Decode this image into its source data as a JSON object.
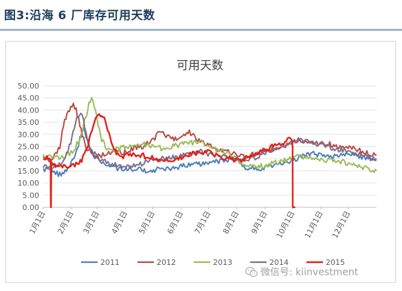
{
  "header": {
    "title": "图3:沿海 6 厂库存可用天数"
  },
  "watermark": {
    "label": "微信号: kiinvestment"
  },
  "chart_data": {
    "type": "line",
    "title": "可用天数",
    "xlabel": "",
    "ylabel": "",
    "ylim": [
      0,
      50
    ],
    "yticks": [
      "0.00",
      "5.00",
      "10.00",
      "15.00",
      "20.00",
      "25.00",
      "30.00",
      "35.00",
      "40.00",
      "45.00",
      "50.00"
    ],
    "x_ticks": [
      "1月1日",
      "2月1日",
      "3月1日",
      "4月1日",
      "5月1日",
      "6月1日",
      "7月1日",
      "8月1日",
      "9月1日",
      "10月1日",
      "11月1日",
      "12月1日"
    ],
    "x_tick_days": [
      0,
      31,
      59,
      90,
      120,
      151,
      181,
      212,
      243,
      273,
      304,
      334
    ],
    "x_domain_days": [
      0,
      365
    ],
    "grid": "horizontal",
    "legend": "bottom",
    "series": [
      {
        "name": "2011",
        "color": "#4a7ebb",
        "points": [
          [
            0,
            15
          ],
          [
            6,
            16
          ],
          [
            12,
            14.5
          ],
          [
            18,
            13.5
          ],
          [
            24,
            14.5
          ],
          [
            28,
            16
          ],
          [
            32,
            19
          ],
          [
            36,
            23
          ],
          [
            40,
            28
          ],
          [
            44,
            33
          ],
          [
            48,
            28
          ],
          [
            52,
            23
          ],
          [
            58,
            20
          ],
          [
            64,
            18.5
          ],
          [
            70,
            17.5
          ],
          [
            78,
            16.5
          ],
          [
            86,
            15.5
          ],
          [
            95,
            16
          ],
          [
            105,
            15.5
          ],
          [
            115,
            15
          ],
          [
            125,
            15.5
          ],
          [
            135,
            16
          ],
          [
            145,
            16.5
          ],
          [
            155,
            17
          ],
          [
            165,
            17.5
          ],
          [
            175,
            18
          ],
          [
            185,
            18.5
          ],
          [
            195,
            19
          ],
          [
            205,
            20
          ],
          [
            212,
            19
          ],
          [
            218,
            17
          ],
          [
            226,
            16
          ],
          [
            234,
            15.5
          ],
          [
            243,
            16.5
          ],
          [
            252,
            17.5
          ],
          [
            262,
            18.5
          ],
          [
            270,
            19
          ],
          [
            278,
            20
          ],
          [
            286,
            21.5
          ],
          [
            296,
            22
          ],
          [
            306,
            21.5
          ],
          [
            316,
            21
          ],
          [
            326,
            22
          ],
          [
            336,
            21.5
          ],
          [
            346,
            20.5
          ],
          [
            356,
            20
          ],
          [
            365,
            20
          ]
        ]
      },
      {
        "name": "2012",
        "color": "#b84a45",
        "points": [
          [
            0,
            20
          ],
          [
            6,
            19
          ],
          [
            12,
            21
          ],
          [
            18,
            25
          ],
          [
            22,
            34
          ],
          [
            26,
            38
          ],
          [
            30,
            41
          ],
          [
            33,
            43
          ],
          [
            36,
            40
          ],
          [
            40,
            34
          ],
          [
            44,
            28
          ],
          [
            48,
            24
          ],
          [
            54,
            22
          ],
          [
            62,
            21
          ],
          [
            70,
            22
          ],
          [
            78,
            23
          ],
          [
            88,
            22.5
          ],
          [
            98,
            24
          ],
          [
            108,
            25
          ],
          [
            118,
            27
          ],
          [
            128,
            31
          ],
          [
            136,
            29
          ],
          [
            146,
            28
          ],
          [
            154,
            30
          ],
          [
            160,
            31
          ],
          [
            166,
            29
          ],
          [
            172,
            27
          ],
          [
            180,
            26
          ],
          [
            188,
            24
          ],
          [
            196,
            23
          ],
          [
            204,
            22.5
          ],
          [
            212,
            22
          ],
          [
            222,
            21
          ],
          [
            232,
            22
          ],
          [
            242,
            23.5
          ],
          [
            252,
            24
          ],
          [
            262,
            25.5
          ],
          [
            270,
            26
          ],
          [
            278,
            28
          ],
          [
            288,
            27
          ],
          [
            298,
            26
          ],
          [
            308,
            26.5
          ],
          [
            318,
            25.5
          ],
          [
            328,
            25
          ],
          [
            338,
            24.5
          ],
          [
            348,
            23
          ],
          [
            356,
            22
          ],
          [
            365,
            21.5
          ]
        ]
      },
      {
        "name": "2013",
        "color": "#9bbb59",
        "points": [
          [
            0,
            21
          ],
          [
            8,
            21.5
          ],
          [
            16,
            20
          ],
          [
            24,
            21
          ],
          [
            32,
            23
          ],
          [
            40,
            28
          ],
          [
            46,
            36
          ],
          [
            50,
            43
          ],
          [
            53,
            45
          ],
          [
            56,
            42
          ],
          [
            60,
            34
          ],
          [
            64,
            28
          ],
          [
            68,
            25
          ],
          [
            74,
            23
          ],
          [
            82,
            24
          ],
          [
            92,
            25
          ],
          [
            102,
            25.5
          ],
          [
            112,
            26
          ],
          [
            122,
            25
          ],
          [
            132,
            24
          ],
          [
            142,
            25
          ],
          [
            152,
            26
          ],
          [
            162,
            26.5
          ],
          [
            172,
            27
          ],
          [
            180,
            25
          ],
          [
            188,
            24
          ],
          [
            198,
            23
          ],
          [
            206,
            21
          ],
          [
            214,
            19
          ],
          [
            222,
            17.5
          ],
          [
            230,
            16.5
          ],
          [
            240,
            17
          ],
          [
            250,
            18
          ],
          [
            260,
            19
          ],
          [
            270,
            20
          ],
          [
            280,
            21
          ],
          [
            290,
            20.5
          ],
          [
            300,
            20
          ],
          [
            310,
            19.5
          ],
          [
            320,
            19
          ],
          [
            330,
            18.5
          ],
          [
            340,
            17.5
          ],
          [
            350,
            16.5
          ],
          [
            358,
            15.5
          ],
          [
            365,
            15
          ]
        ]
      },
      {
        "name": "2014",
        "color": "#7b6e8c",
        "points": [
          [
            0,
            17
          ],
          [
            8,
            16.5
          ],
          [
            16,
            17
          ],
          [
            24,
            20
          ],
          [
            30,
            27
          ],
          [
            34,
            33
          ],
          [
            38,
            38
          ],
          [
            41,
            39
          ],
          [
            44,
            36
          ],
          [
            48,
            29
          ],
          [
            52,
            24
          ],
          [
            58,
            21
          ],
          [
            66,
            19
          ],
          [
            74,
            18
          ],
          [
            82,
            17.5
          ],
          [
            92,
            17
          ],
          [
            102,
            17.5
          ],
          [
            112,
            18.5
          ],
          [
            122,
            19.5
          ],
          [
            132,
            20
          ],
          [
            142,
            20.5
          ],
          [
            152,
            21
          ],
          [
            162,
            22
          ],
          [
            172,
            23
          ],
          [
            182,
            22
          ],
          [
            192,
            21.5
          ],
          [
            202,
            21
          ],
          [
            212,
            20
          ],
          [
            222,
            19.5
          ],
          [
            232,
            20.5
          ],
          [
            242,
            22
          ],
          [
            252,
            24
          ],
          [
            262,
            25.5
          ],
          [
            272,
            27
          ],
          [
            282,
            28
          ],
          [
            292,
            27
          ],
          [
            302,
            26
          ],
          [
            312,
            25
          ],
          [
            322,
            24
          ],
          [
            332,
            23
          ],
          [
            342,
            22
          ],
          [
            352,
            21
          ],
          [
            360,
            20
          ],
          [
            365,
            19.5
          ]
        ]
      },
      {
        "name": "2015",
        "color": "#e0211a",
        "points": [
          [
            0,
            19
          ],
          [
            4,
            20.5
          ],
          [
            7,
            19.5
          ],
          [
            8,
            19
          ],
          [
            8.2,
            0
          ],
          [
            8.5,
            0
          ],
          [
            8.8,
            18
          ],
          [
            12,
            17.5
          ],
          [
            18,
            17
          ],
          [
            24,
            16.5
          ],
          [
            30,
            17
          ],
          [
            36,
            18
          ],
          [
            42,
            19.5
          ],
          [
            48,
            24
          ],
          [
            52,
            30
          ],
          [
            56,
            35
          ],
          [
            60,
            38
          ],
          [
            64,
            38.5
          ],
          [
            68,
            36
          ],
          [
            72,
            30
          ],
          [
            76,
            25
          ],
          [
            80,
            22
          ],
          [
            86,
            21
          ],
          [
            92,
            21.5
          ],
          [
            100,
            22
          ],
          [
            108,
            21.5
          ],
          [
            116,
            20.5
          ],
          [
            124,
            19.5
          ],
          [
            132,
            19
          ],
          [
            140,
            19.5
          ],
          [
            148,
            20
          ],
          [
            156,
            21
          ],
          [
            164,
            22
          ],
          [
            172,
            22.5
          ],
          [
            180,
            23
          ],
          [
            188,
            21.5
          ],
          [
            196,
            20.5
          ],
          [
            204,
            20
          ],
          [
            212,
            19.5
          ],
          [
            220,
            20
          ],
          [
            228,
            21.5
          ],
          [
            236,
            23
          ],
          [
            244,
            24
          ],
          [
            252,
            25
          ],
          [
            260,
            26
          ],
          [
            266,
            27
          ],
          [
            270,
            28
          ],
          [
            272,
            27
          ],
          [
            273,
            25
          ],
          [
            273.2,
            0
          ],
          [
            276,
            0
          ]
        ]
      }
    ]
  }
}
